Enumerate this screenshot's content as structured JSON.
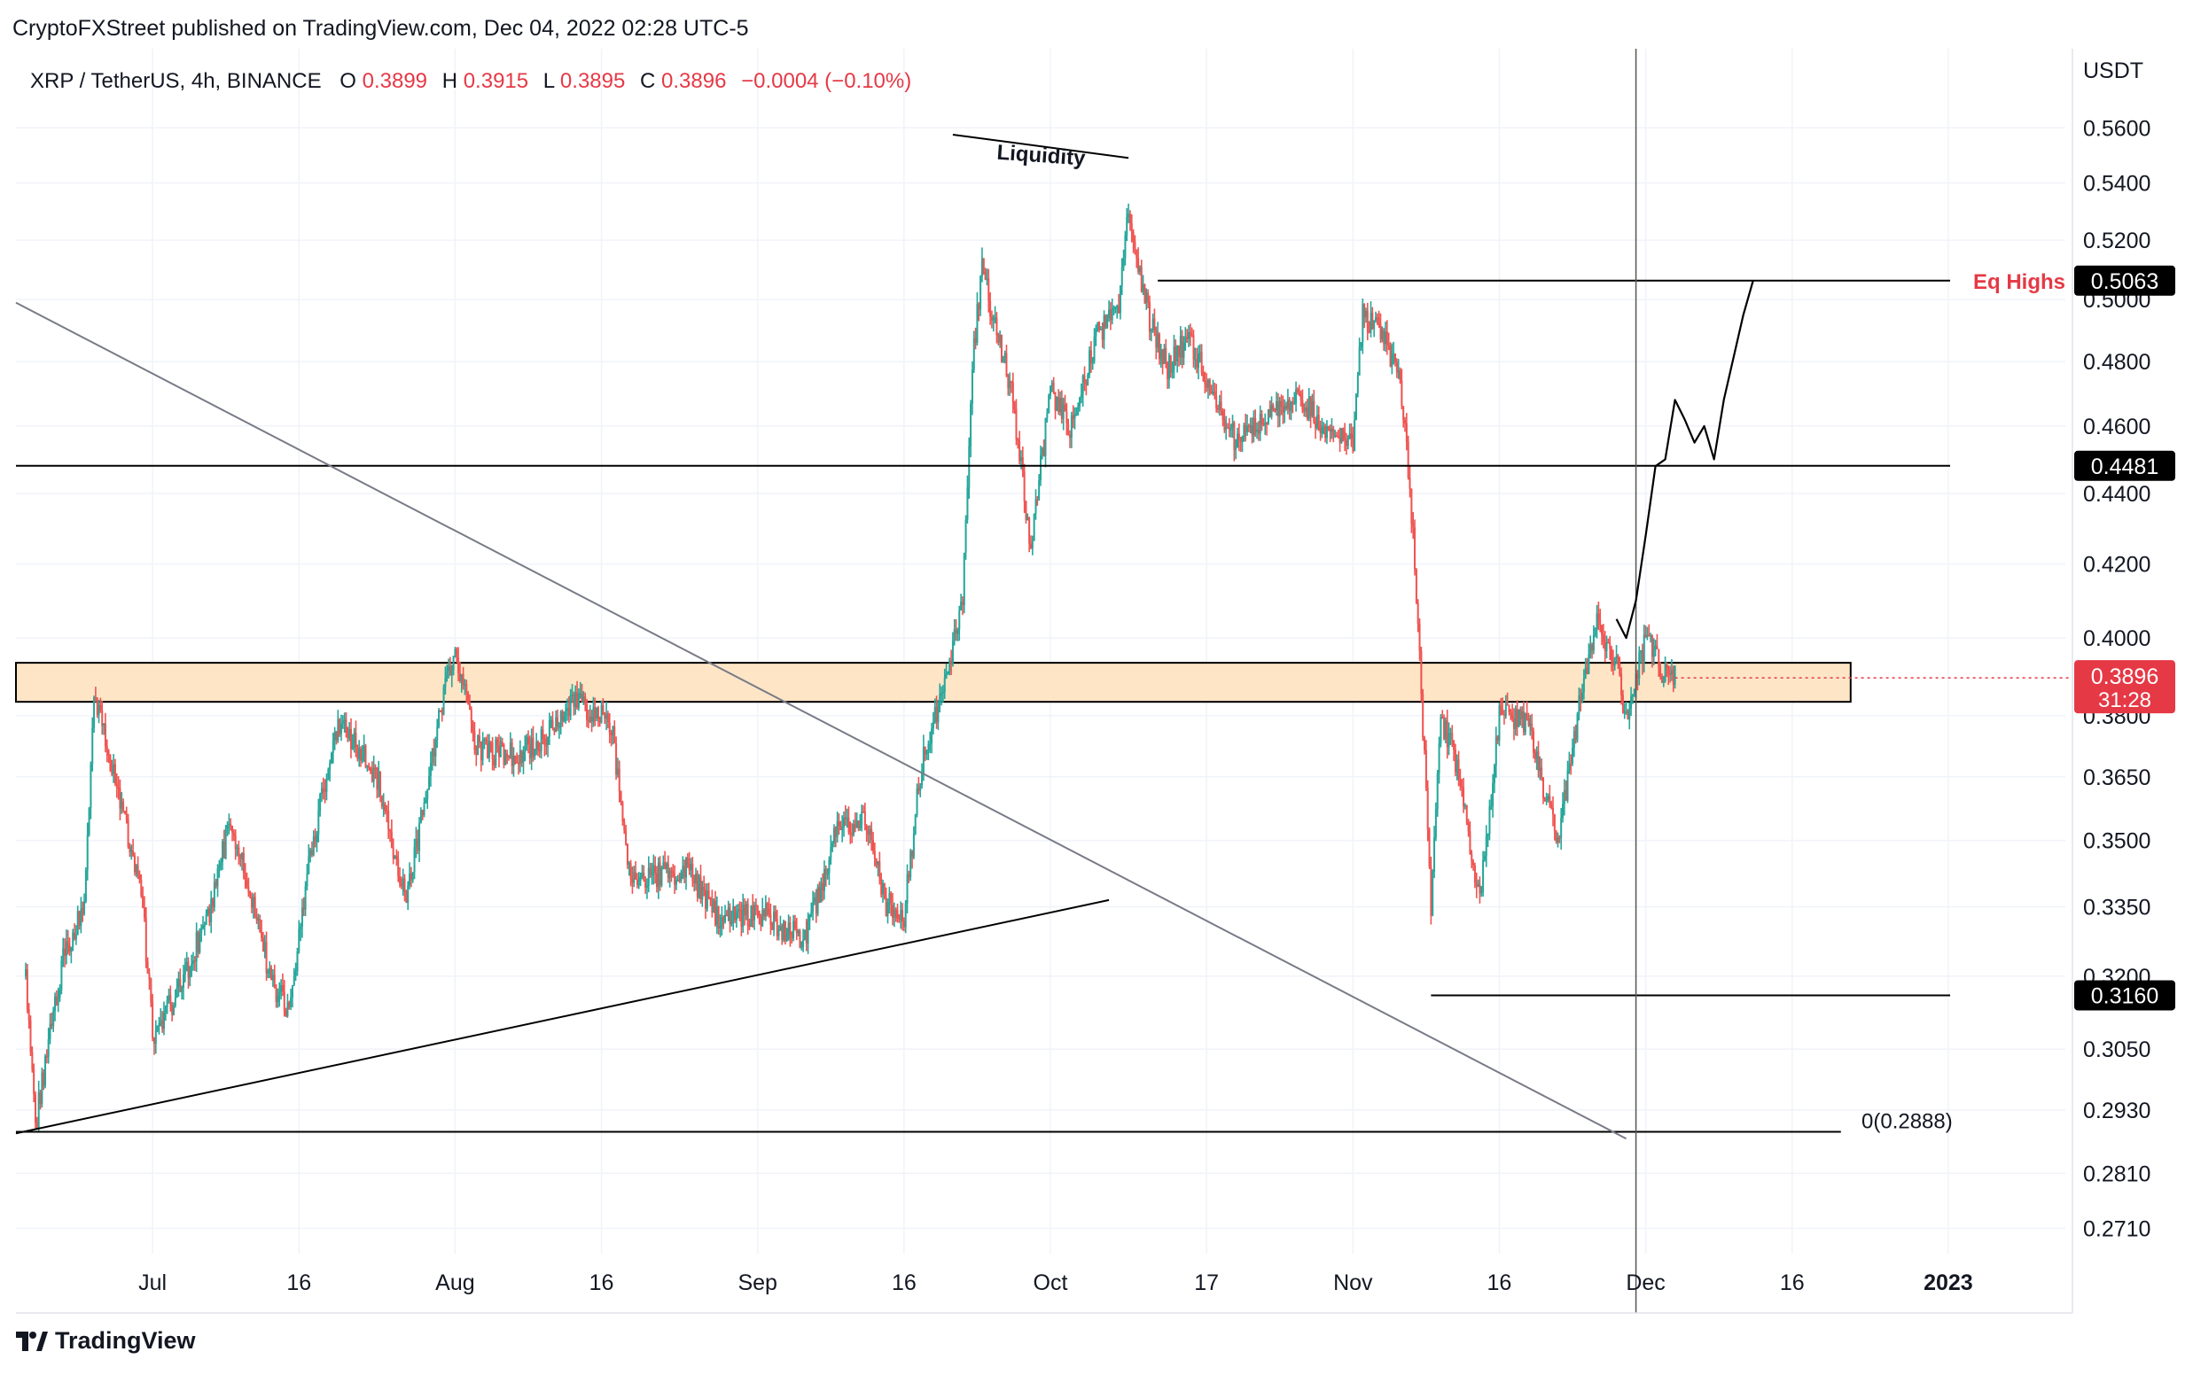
{
  "header": {
    "published": "CryptoFXStreet published on TradingView.com, Dec 04, 2022 02:28 UTC-5"
  },
  "legend": {
    "symbol": "XRP / TetherUS, 4h, BINANCE",
    "o_label": "O",
    "o_value": "0.3899",
    "h_label": "H",
    "h_value": "0.3915",
    "l_label": "L",
    "l_value": "0.3895",
    "c_label": "C",
    "c_value": "0.3896",
    "change": "−0.0004 (−0.10%)"
  },
  "footer": {
    "brand": "TradingView"
  },
  "colors": {
    "up": "#26a69a",
    "down": "#ef5350",
    "zone_fill": "#fde5c6",
    "accent_red": "#e53946",
    "label_black": "#000000"
  },
  "chart_data": {
    "type": "candlestick",
    "title": "XRP / TetherUS, 4h, BINANCE",
    "currency_label": "USDT",
    "x_ticks": [
      {
        "label": "Jul",
        "date": "2022-07-01"
      },
      {
        "label": "16",
        "date": "2022-07-16"
      },
      {
        "label": "Aug",
        "date": "2022-08-01"
      },
      {
        "label": "16",
        "date": "2022-08-16"
      },
      {
        "label": "Sep",
        "date": "2022-09-01"
      },
      {
        "label": "16",
        "date": "2022-09-16"
      },
      {
        "label": "Oct",
        "date": "2022-10-01"
      },
      {
        "label": "17",
        "date": "2022-10-17"
      },
      {
        "label": "Nov",
        "date": "2022-11-01"
      },
      {
        "label": "16",
        "date": "2022-11-16"
      },
      {
        "label": "Dec",
        "date": "2022-12-01"
      },
      {
        "label": "16",
        "date": "2022-12-16"
      },
      {
        "label": "2023",
        "date": "2023-01-01",
        "bold": true
      }
    ],
    "y_ticks": [
      "0.5600",
      "0.5400",
      "0.5200",
      "0.5000",
      "0.4800",
      "0.4600",
      "0.4400",
      "0.4200",
      "0.4000",
      "0.3800",
      "0.3650",
      "0.3500",
      "0.3350",
      "0.3200",
      "0.3050",
      "0.2930",
      "0.2810",
      "0.2710"
    ],
    "y_scale": "log",
    "ylim": [
      0.2665,
      0.59
    ],
    "xlim": [
      "2022-06-17",
      "2023-01-13"
    ],
    "series_waypoints": [
      {
        "x": "2022-06-18",
        "y": 0.32
      },
      {
        "x": "2022-06-19",
        "y": 0.29
      },
      {
        "x": "2022-06-22",
        "y": 0.325
      },
      {
        "x": "2022-06-24",
        "y": 0.335
      },
      {
        "x": "2022-06-25",
        "y": 0.385
      },
      {
        "x": "2022-06-27",
        "y": 0.366
      },
      {
        "x": "2022-06-30",
        "y": 0.335
      },
      {
        "x": "2022-07-01",
        "y": 0.308
      },
      {
        "x": "2022-07-04",
        "y": 0.318
      },
      {
        "x": "2022-07-07",
        "y": 0.335
      },
      {
        "x": "2022-07-09",
        "y": 0.355
      },
      {
        "x": "2022-07-11",
        "y": 0.338
      },
      {
        "x": "2022-07-13",
        "y": 0.32
      },
      {
        "x": "2022-07-15",
        "y": 0.312
      },
      {
        "x": "2022-07-17",
        "y": 0.345
      },
      {
        "x": "2022-07-20",
        "y": 0.378
      },
      {
        "x": "2022-07-24",
        "y": 0.365
      },
      {
        "x": "2022-07-27",
        "y": 0.335
      },
      {
        "x": "2022-07-30",
        "y": 0.375
      },
      {
        "x": "2022-08-01",
        "y": 0.398
      },
      {
        "x": "2022-08-03",
        "y": 0.372
      },
      {
        "x": "2022-08-07",
        "y": 0.37
      },
      {
        "x": "2022-08-10",
        "y": 0.375
      },
      {
        "x": "2022-08-13",
        "y": 0.384
      },
      {
        "x": "2022-08-17",
        "y": 0.378
      },
      {
        "x": "2022-08-19",
        "y": 0.34
      },
      {
        "x": "2022-08-22",
        "y": 0.342
      },
      {
        "x": "2022-08-25",
        "y": 0.343
      },
      {
        "x": "2022-08-28",
        "y": 0.332
      },
      {
        "x": "2022-09-01",
        "y": 0.334
      },
      {
        "x": "2022-09-04",
        "y": 0.33
      },
      {
        "x": "2022-09-06",
        "y": 0.328
      },
      {
        "x": "2022-09-09",
        "y": 0.352
      },
      {
        "x": "2022-09-12",
        "y": 0.355
      },
      {
        "x": "2022-09-14",
        "y": 0.336
      },
      {
        "x": "2022-09-16",
        "y": 0.333
      },
      {
        "x": "2022-09-18",
        "y": 0.372
      },
      {
        "x": "2022-09-20",
        "y": 0.385
      },
      {
        "x": "2022-09-22",
        "y": 0.41
      },
      {
        "x": "2022-09-23",
        "y": 0.48
      },
      {
        "x": "2022-09-24",
        "y": 0.51
      },
      {
        "x": "2022-09-27",
        "y": 0.47
      },
      {
        "x": "2022-09-29",
        "y": 0.425
      },
      {
        "x": "2022-10-01",
        "y": 0.47
      },
      {
        "x": "2022-10-03",
        "y": 0.46
      },
      {
        "x": "2022-10-06",
        "y": 0.49
      },
      {
        "x": "2022-10-08",
        "y": 0.495
      },
      {
        "x": "2022-10-09",
        "y": 0.53
      },
      {
        "x": "2022-10-11",
        "y": 0.495
      },
      {
        "x": "2022-10-13",
        "y": 0.478
      },
      {
        "x": "2022-10-15",
        "y": 0.488
      },
      {
        "x": "2022-10-18",
        "y": 0.468
      },
      {
        "x": "2022-10-20",
        "y": 0.455
      },
      {
        "x": "2022-10-23",
        "y": 0.462
      },
      {
        "x": "2022-10-26",
        "y": 0.47
      },
      {
        "x": "2022-10-29",
        "y": 0.46
      },
      {
        "x": "2022-11-01",
        "y": 0.455
      },
      {
        "x": "2022-11-02",
        "y": 0.495
      },
      {
        "x": "2022-11-04",
        "y": 0.49
      },
      {
        "x": "2022-11-06",
        "y": 0.47
      },
      {
        "x": "2022-11-07",
        "y": 0.435
      },
      {
        "x": "2022-11-08",
        "y": 0.385
      },
      {
        "x": "2022-11-09",
        "y": 0.335
      },
      {
        "x": "2022-11-10",
        "y": 0.38
      },
      {
        "x": "2022-11-12",
        "y": 0.365
      },
      {
        "x": "2022-11-14",
        "y": 0.335
      },
      {
        "x": "2022-11-16",
        "y": 0.38
      },
      {
        "x": "2022-11-19",
        "y": 0.378
      },
      {
        "x": "2022-11-21",
        "y": 0.358
      },
      {
        "x": "2022-11-22",
        "y": 0.348
      },
      {
        "x": "2022-11-24",
        "y": 0.38
      },
      {
        "x": "2022-11-26",
        "y": 0.405
      },
      {
        "x": "2022-11-28",
        "y": 0.392
      },
      {
        "x": "2022-11-29",
        "y": 0.38
      },
      {
        "x": "2022-12-01",
        "y": 0.4
      },
      {
        "x": "2022-12-03",
        "y": 0.39
      },
      {
        "x": "2022-12-04",
        "y": 0.3896
      }
    ],
    "price_levels": [
      {
        "value": 0.5063,
        "label": "0.5063",
        "from": "2022-10-12",
        "note": "Eq Highs"
      },
      {
        "value": 0.4481,
        "label": "0.4481",
        "from": "2022-06-17"
      },
      {
        "value": 0.316,
        "label": "0.3160",
        "from": "2022-11-09"
      },
      {
        "value": 0.2888,
        "label": "0(0.2888)",
        "from": "2022-06-17",
        "to": "2022-12-21"
      }
    ],
    "zone": {
      "low": 0.3835,
      "high": 0.3935,
      "from": "2022-06-17",
      "to": "2022-12-22"
    },
    "trendlines": [
      {
        "name": "ascending-support",
        "points": [
          {
            "x": "2022-06-17",
            "y": 0.2885
          },
          {
            "x": "2022-10-07",
            "y": 0.3365
          }
        ]
      },
      {
        "name": "descending-resistance",
        "points": [
          {
            "x": "2022-06-17",
            "y": 0.499
          },
          {
            "x": "2022-11-29",
            "y": 0.2875
          }
        ]
      },
      {
        "name": "liquidity-line",
        "points": [
          {
            "x": "2022-09-21",
            "y": 0.5575
          },
          {
            "x": "2022-10-09",
            "y": 0.549
          }
        ]
      }
    ],
    "crosshair_date": "2022-11-30",
    "current_price": {
      "value": "0.3896",
      "countdown": "31:28"
    },
    "annotations": {
      "liquidity": "Liquidity",
      "eq_highs": "Eq Highs"
    },
    "projection_path": [
      {
        "x": "2022-11-28",
        "y": 0.405
      },
      {
        "x": "2022-11-29",
        "y": 0.4
      },
      {
        "x": "2022-11-30",
        "y": 0.41
      },
      {
        "x": "2022-12-01",
        "y": 0.428
      },
      {
        "x": "2022-12-02",
        "y": 0.448
      },
      {
        "x": "2022-12-03",
        "y": 0.45
      },
      {
        "x": "2022-12-04",
        "y": 0.468
      },
      {
        "x": "2022-12-05",
        "y": 0.462
      },
      {
        "x": "2022-12-06",
        "y": 0.455
      },
      {
        "x": "2022-12-07",
        "y": 0.46
      },
      {
        "x": "2022-12-08",
        "y": 0.45
      },
      {
        "x": "2022-12-09",
        "y": 0.468
      },
      {
        "x": "2022-12-11",
        "y": 0.495
      },
      {
        "x": "2022-12-12",
        "y": 0.5063
      }
    ]
  }
}
